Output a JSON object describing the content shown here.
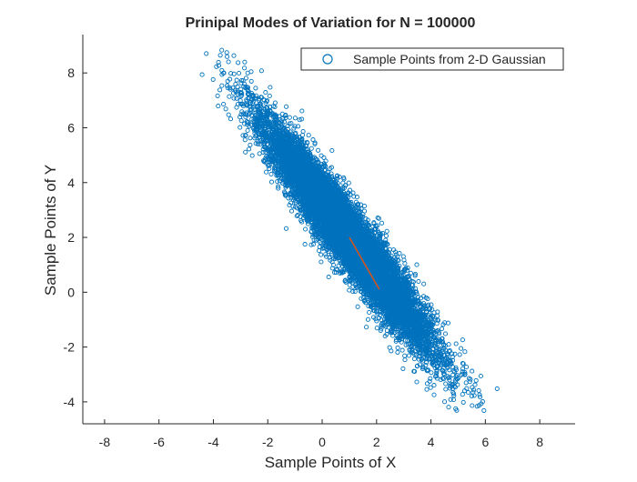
{
  "colors": {
    "points": "#0072BD",
    "mode_line": "#D95319",
    "axes": "#262626",
    "background": "#ffffff"
  },
  "chart_data": {
    "type": "scatter",
    "title": "Prinipal Modes of Variation for N  = 100000",
    "xlabel": "Sample Points of X",
    "ylabel": "Sample Points of Y",
    "xlim": [
      -8.8,
      9.3
    ],
    "ylim": [
      -4.8,
      9.4
    ],
    "xticks": [
      -8,
      -6,
      -4,
      -2,
      0,
      2,
      4,
      6,
      8
    ],
    "yticks": [
      -4,
      -2,
      0,
      2,
      4,
      6,
      8
    ],
    "grid": false,
    "legend_position": "top-right",
    "series": [
      {
        "name": "Sample Points from 2-D Gaussian",
        "marker": "circle",
        "distribution": {
          "n_points": 100000,
          "mean": [
            1,
            2
          ],
          "covariance": [
            [
              2.25,
              -2.85
            ],
            [
              -2.85,
              4.0
            ]
          ]
        }
      }
    ],
    "mode_line": {
      "x": [
        1.0,
        2.1
      ],
      "y": [
        2.0,
        0.1
      ]
    }
  }
}
